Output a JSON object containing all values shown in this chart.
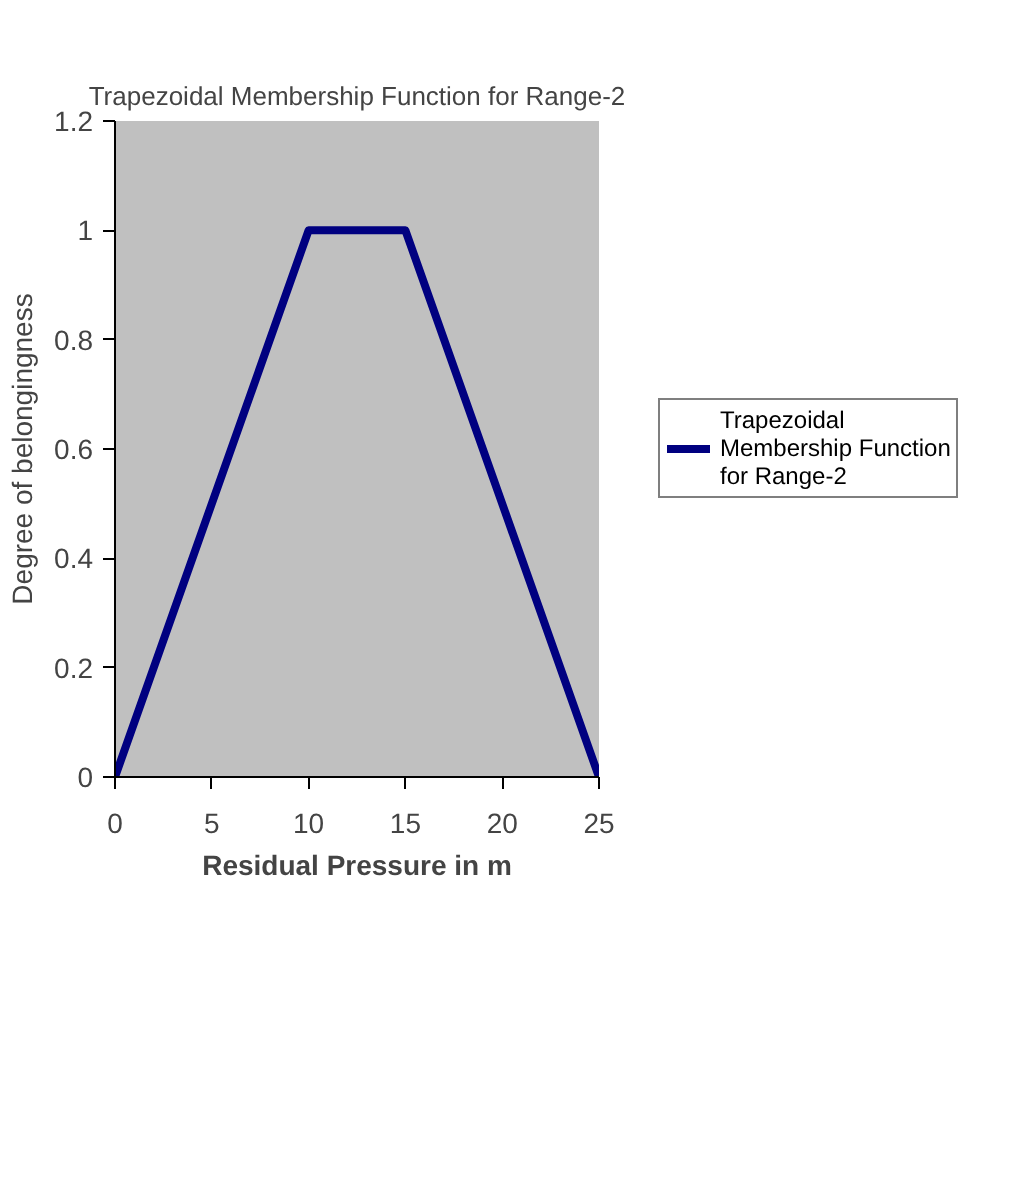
{
  "chart_data": {
    "type": "line",
    "title": "Trapezoidal Membership Function for Range-2",
    "xlabel": "Residual Pressure in m",
    "ylabel": "Degree of belongingness",
    "x": [
      0,
      10,
      15,
      25
    ],
    "series": [
      {
        "name": "Trapezoidal Membership Function for Range-2",
        "color": "#000080",
        "values": [
          0,
          1,
          1,
          0
        ]
      }
    ],
    "xlim": [
      0,
      25
    ],
    "ylim": [
      0,
      1.2
    ],
    "xticks": [
      0,
      5,
      10,
      15,
      20,
      25
    ],
    "yticks": [
      0,
      0.2,
      0.4,
      0.6,
      0.8,
      1,
      1.2
    ],
    "grid": false,
    "legend": "right",
    "marker": "none",
    "line_style": "solid"
  }
}
